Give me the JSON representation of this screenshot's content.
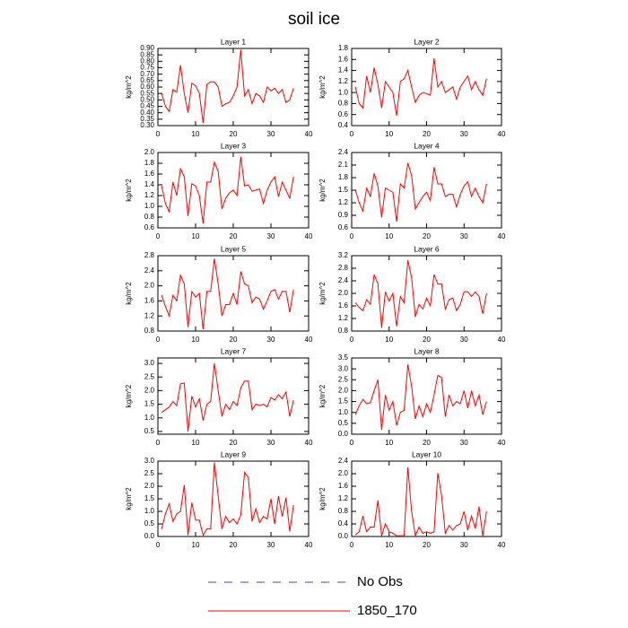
{
  "title": "soil ice",
  "legend": [
    {
      "name": "No Obs",
      "color": "#4a4aa0",
      "style": "dashed"
    },
    {
      "name": "1850_170",
      "color": "#ff0000",
      "style": "solid"
    }
  ],
  "chart_data": [
    {
      "type": "line",
      "title": "Layer 1",
      "ylabel": "kg/m^2",
      "color": "#ff0000",
      "x": [
        1,
        2,
        3,
        4,
        5,
        6,
        7,
        8,
        9,
        10,
        11,
        12,
        13,
        14,
        15,
        16,
        17,
        18,
        19,
        20,
        21,
        22,
        23,
        24,
        25,
        26,
        27,
        28,
        29,
        30,
        31,
        32,
        33,
        34,
        35,
        36
      ],
      "values": [
        0.55,
        0.45,
        0.41,
        0.58,
        0.56,
        0.77,
        0.55,
        0.4,
        0.63,
        0.61,
        0.55,
        0.32,
        0.62,
        0.64,
        0.64,
        0.6,
        0.45,
        0.47,
        0.48,
        0.53,
        0.6,
        0.89,
        0.53,
        0.58,
        0.47,
        0.55,
        0.53,
        0.48,
        0.6,
        0.57,
        0.59,
        0.55,
        0.58,
        0.48,
        0.5,
        0.59
      ],
      "xlim": [
        0,
        40
      ],
      "xticks": [
        0,
        10,
        20,
        30,
        40
      ],
      "ylim": [
        0.3,
        0.9
      ],
      "yticks": [
        {
          "value": 0.3,
          "label": "0.30"
        },
        0.35,
        {
          "value": 0.4,
          "label": "0.40"
        },
        0.45,
        {
          "value": 0.5,
          "label": "0.50"
        },
        0.55,
        {
          "value": 0.6,
          "label": "0.60"
        },
        0.65,
        {
          "value": 0.7,
          "label": "0.70"
        },
        0.75,
        {
          "value": 0.8,
          "label": "0.80"
        },
        0.85,
        {
          "value": 0.9,
          "label": "0.90"
        }
      ]
    },
    {
      "type": "line",
      "title": "Layer 2",
      "ylabel": "kg/m^2",
      "color": "#ff0000",
      "x": [
        1,
        2,
        3,
        4,
        5,
        6,
        7,
        8,
        9,
        10,
        11,
        12,
        13,
        14,
        15,
        16,
        17,
        18,
        19,
        20,
        21,
        22,
        23,
        24,
        25,
        26,
        27,
        28,
        29,
        30,
        31,
        32,
        33,
        34,
        35,
        36
      ],
      "values": [
        1.1,
        0.8,
        0.72,
        1.3,
        1.0,
        1.45,
        1.15,
        0.72,
        1.2,
        1.1,
        1.0,
        0.58,
        1.2,
        1.25,
        1.4,
        1.1,
        0.82,
        0.95,
        1.0,
        0.98,
        0.95,
        1.62,
        1.1,
        1.2,
        1.0,
        1.05,
        1.1,
        0.88,
        1.1,
        1.2,
        1.3,
        1.05,
        1.2,
        1.05,
        0.95,
        1.25
      ],
      "xlim": [
        0,
        40
      ],
      "xticks": [
        0,
        10,
        20,
        30,
        40
      ],
      "ylim": [
        0.4,
        1.8
      ],
      "yticks": [
        0.4,
        0.6,
        0.8,
        {
          "value": 1,
          "label": "1.0"
        },
        1.2,
        1.4,
        1.6,
        1.8
      ]
    },
    {
      "type": "line",
      "title": "Layer 3",
      "ylabel": "kg/m^2",
      "color": "#ff0000",
      "x": [
        1,
        2,
        3,
        4,
        5,
        6,
        7,
        8,
        9,
        10,
        11,
        12,
        13,
        14,
        15,
        16,
        17,
        18,
        19,
        20,
        21,
        22,
        23,
        24,
        25,
        26,
        27,
        28,
        29,
        30,
        31,
        32,
        33,
        34,
        35,
        36
      ],
      "values": [
        1.38,
        1.05,
        0.9,
        1.45,
        1.2,
        1.7,
        1.55,
        0.82,
        1.42,
        1.38,
        1.2,
        0.68,
        1.45,
        1.45,
        1.82,
        1.65,
        0.95,
        1.15,
        1.25,
        1.3,
        1.2,
        1.92,
        1.38,
        1.4,
        1.28,
        1.3,
        1.32,
        1.05,
        1.3,
        1.45,
        1.55,
        1.18,
        1.45,
        1.3,
        1.15,
        1.55
      ],
      "xlim": [
        0,
        40
      ],
      "xticks": [
        0,
        10,
        20,
        30,
        40
      ],
      "ylim": [
        0.6,
        2.0
      ],
      "yticks": [
        0.6,
        0.8,
        {
          "value": 1,
          "label": "1.0"
        },
        1.2,
        1.4,
        1.6,
        1.8,
        {
          "value": 2,
          "label": "2.0"
        }
      ]
    },
    {
      "type": "line",
      "title": "Layer 4",
      "ylabel": "kg/m^2",
      "color": "#ff0000",
      "x": [
        1,
        2,
        3,
        4,
        5,
        6,
        7,
        8,
        9,
        10,
        11,
        12,
        13,
        14,
        15,
        16,
        17,
        18,
        19,
        20,
        21,
        22,
        23,
        24,
        25,
        26,
        27,
        28,
        29,
        30,
        31,
        32,
        33,
        34,
        35,
        36
      ],
      "values": [
        1.5,
        1.2,
        1.0,
        1.55,
        1.35,
        1.9,
        1.6,
        0.85,
        1.55,
        1.5,
        1.45,
        0.75,
        1.65,
        1.55,
        2.15,
        1.85,
        1.05,
        1.2,
        1.35,
        1.45,
        1.25,
        2.05,
        1.65,
        1.65,
        1.35,
        1.4,
        1.4,
        1.1,
        1.4,
        1.6,
        1.7,
        1.35,
        1.55,
        1.35,
        1.2,
        1.65
      ],
      "xlim": [
        0,
        40
      ],
      "xticks": [
        0,
        10,
        20,
        30,
        40
      ],
      "ylim": [
        0.6,
        2.4
      ],
      "yticks": [
        0.6,
        0.9,
        1.2,
        1.5,
        1.8,
        2.1,
        2.4
      ]
    },
    {
      "type": "line",
      "title": "Layer 5",
      "ylabel": "kg/m^2",
      "color": "#ff0000",
      "x": [
        1,
        2,
        3,
        4,
        5,
        6,
        7,
        8,
        9,
        10,
        11,
        12,
        13,
        14,
        15,
        16,
        17,
        18,
        19,
        20,
        21,
        22,
        23,
        24,
        25,
        26,
        27,
        28,
        29,
        30,
        31,
        32,
        33,
        34,
        35,
        36
      ],
      "values": [
        1.75,
        1.45,
        1.2,
        1.75,
        1.6,
        2.28,
        2.05,
        0.9,
        1.85,
        1.7,
        1.8,
        0.85,
        1.85,
        1.85,
        2.72,
        2.05,
        1.2,
        1.5,
        1.5,
        1.8,
        1.5,
        2.38,
        2.05,
        2.0,
        1.55,
        1.7,
        1.65,
        1.38,
        1.6,
        1.85,
        1.9,
        1.65,
        1.85,
        1.85,
        1.3,
        1.9
      ],
      "xlim": [
        0,
        40
      ],
      "xticks": [
        0,
        10,
        20,
        30,
        40
      ],
      "ylim": [
        0.8,
        2.8
      ],
      "yticks": [
        0.8,
        1.2,
        1.6,
        {
          "value": 2,
          "label": "2.0"
        },
        2.4,
        2.8
      ]
    },
    {
      "type": "line",
      "title": "Layer 6",
      "ylabel": "kg/m^2",
      "color": "#ff0000",
      "x": [
        1,
        2,
        3,
        4,
        5,
        6,
        7,
        8,
        9,
        10,
        11,
        12,
        13,
        14,
        15,
        16,
        17,
        18,
        19,
        20,
        21,
        22,
        23,
        24,
        25,
        26,
        27,
        28,
        29,
        30,
        31,
        32,
        33,
        34,
        35,
        36
      ],
      "values": [
        1.7,
        1.55,
        1.45,
        1.8,
        1.65,
        2.6,
        2.3,
        0.9,
        2.05,
        1.75,
        2.0,
        0.95,
        1.9,
        1.7,
        3.05,
        2.5,
        1.25,
        1.65,
        1.5,
        1.85,
        1.6,
        2.6,
        2.3,
        2.3,
        1.5,
        1.8,
        1.85,
        1.45,
        1.65,
        2.05,
        2.05,
        1.9,
        2.05,
        1.9,
        1.35,
        2.0
      ],
      "xlim": [
        0,
        40
      ],
      "xticks": [
        0,
        10,
        20,
        30,
        40
      ],
      "ylim": [
        0.8,
        3.2
      ],
      "yticks": [
        0.8,
        1.2,
        1.6,
        {
          "value": 2,
          "label": "2.0"
        },
        2.4,
        2.8,
        3.2
      ]
    },
    {
      "type": "line",
      "title": "Layer 7",
      "ylabel": "kg/m^2",
      "color": "#ff0000",
      "x": [
        1,
        2,
        3,
        4,
        5,
        6,
        7,
        8,
        9,
        10,
        11,
        12,
        13,
        14,
        15,
        16,
        17,
        18,
        19,
        20,
        21,
        22,
        23,
        24,
        25,
        26,
        27,
        28,
        29,
        30,
        31,
        32,
        33,
        34,
        35,
        36
      ],
      "values": [
        1.2,
        1.3,
        1.4,
        1.6,
        1.45,
        2.25,
        2.28,
        0.5,
        1.8,
        1.4,
        1.7,
        0.9,
        1.5,
        1.6,
        3.0,
        2.0,
        1.05,
        1.5,
        1.3,
        1.6,
        1.45,
        2.1,
        2.35,
        2.35,
        1.3,
        1.5,
        1.45,
        1.5,
        1.4,
        1.75,
        1.65,
        1.85,
        1.7,
        1.95,
        1.05,
        1.65
      ],
      "xlim": [
        0,
        40
      ],
      "xticks": [
        0,
        10,
        20,
        30,
        40
      ],
      "ylim": [
        0.4,
        3.2
      ],
      "yticks": [
        0.5,
        {
          "value": 1,
          "label": "1.0"
        },
        1.5,
        {
          "value": 2,
          "label": "2.0"
        },
        2.5,
        {
          "value": 3,
          "label": "3.0"
        }
      ]
    },
    {
      "type": "line",
      "title": "Layer 8",
      "ylabel": "kg/m^2",
      "color": "#ff0000",
      "x": [
        1,
        2,
        3,
        4,
        5,
        6,
        7,
        8,
        9,
        10,
        11,
        12,
        13,
        14,
        15,
        16,
        17,
        18,
        19,
        20,
        21,
        22,
        23,
        24,
        25,
        26,
        27,
        28,
        29,
        30,
        31,
        32,
        33,
        34,
        35,
        36
      ],
      "values": [
        0.9,
        1.3,
        1.6,
        1.4,
        1.45,
        2.0,
        2.5,
        0.2,
        1.8,
        1.1,
        1.5,
        0.4,
        1.0,
        1.1,
        3.2,
        2.2,
        0.7,
        1.3,
        0.8,
        1.4,
        1.0,
        1.8,
        2.7,
        2.6,
        0.8,
        1.8,
        1.3,
        1.5,
        1.4,
        2.0,
        1.2,
        2.0,
        1.3,
        1.8,
        0.9,
        1.5
      ],
      "xlim": [
        0,
        40
      ],
      "xticks": [
        0,
        10,
        20,
        30,
        40
      ],
      "ylim": [
        0,
        3.5
      ],
      "yticks": [
        {
          "value": 0,
          "label": "0.0"
        },
        0.5,
        {
          "value": 1,
          "label": "1.0"
        },
        1.5,
        {
          "value": 2,
          "label": "2.0"
        },
        2.5,
        {
          "value": 3,
          "label": "3.0"
        },
        3.5
      ]
    },
    {
      "type": "line",
      "title": "Layer 9",
      "ylabel": "kg/m^2",
      "color": "#ff0000",
      "x": [
        1,
        2,
        3,
        4,
        5,
        6,
        7,
        8,
        9,
        10,
        11,
        12,
        13,
        14,
        15,
        16,
        17,
        18,
        19,
        20,
        21,
        22,
        23,
        24,
        25,
        26,
        27,
        28,
        29,
        30,
        31,
        32,
        33,
        34,
        35,
        36
      ],
      "values": [
        0.3,
        0.9,
        1.3,
        0.6,
        0.9,
        1.0,
        2.05,
        0.05,
        1.35,
        0.65,
        0.65,
        0.05,
        0.3,
        0.3,
        2.95,
        1.6,
        0.3,
        0.8,
        0.55,
        0.7,
        0.5,
        0.85,
        2.55,
        2.35,
        0.6,
        1.1,
        0.55,
        0.8,
        0.7,
        1.5,
        0.5,
        1.6,
        0.8,
        1.55,
        0.2,
        1.25
      ],
      "xlim": [
        0,
        40
      ],
      "xticks": [
        0,
        10,
        20,
        30,
        40
      ],
      "ylim": [
        0,
        3.0
      ],
      "yticks": [
        {
          "value": 0,
          "label": "0.0"
        },
        0.5,
        {
          "value": 1,
          "label": "1.0"
        },
        1.5,
        {
          "value": 2,
          "label": "2.0"
        },
        2.5,
        {
          "value": 3,
          "label": "3.0"
        }
      ]
    },
    {
      "type": "line",
      "title": "Layer 10",
      "ylabel": "kg/m^2",
      "color": "#ff0000",
      "x": [
        1,
        2,
        3,
        4,
        5,
        6,
        7,
        8,
        9,
        10,
        11,
        12,
        13,
        14,
        15,
        16,
        17,
        18,
        19,
        20,
        21,
        22,
        23,
        24,
        25,
        26,
        27,
        28,
        29,
        30,
        31,
        32,
        33,
        34,
        35,
        36
      ],
      "values": [
        0.05,
        0.15,
        0.65,
        0.15,
        0.3,
        0.3,
        1.15,
        0.02,
        0.4,
        0.15,
        0.1,
        0.02,
        0.02,
        0.02,
        2.2,
        0.8,
        0.02,
        0.3,
        0.1,
        0.15,
        0.1,
        0.15,
        2.02,
        1.3,
        0.1,
        0.35,
        0.2,
        0.35,
        0.4,
        0.8,
        0.2,
        0.65,
        0.25,
        0.95,
        0.02,
        0.8
      ],
      "xlim": [
        0,
        40
      ],
      "xticks": [
        0,
        10,
        20,
        30,
        40
      ],
      "ylim": [
        0,
        2.4
      ],
      "yticks": [
        {
          "value": 0,
          "label": "0.0"
        },
        0.4,
        0.8,
        1.2,
        1.6,
        {
          "value": 2,
          "label": "2.0"
        },
        2.4
      ]
    }
  ]
}
